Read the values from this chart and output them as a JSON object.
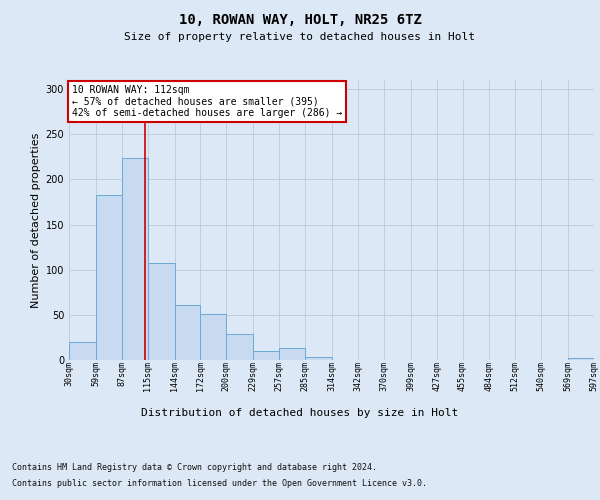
{
  "title1": "10, ROWAN WAY, HOLT, NR25 6TZ",
  "title2": "Size of property relative to detached houses in Holt",
  "xlabel": "Distribution of detached houses by size in Holt",
  "ylabel": "Number of detached properties",
  "bar_edges": [
    30,
    59,
    87,
    115,
    144,
    172,
    200,
    229,
    257,
    285,
    314,
    342,
    370,
    399,
    427,
    455,
    484,
    512,
    540,
    569,
    597
  ],
  "bar_heights": [
    20,
    183,
    224,
    107,
    61,
    51,
    29,
    10,
    13,
    3,
    0,
    0,
    0,
    0,
    0,
    0,
    0,
    0,
    0,
    2
  ],
  "bar_color": "#c8daf0",
  "bar_edge_color": "#6aaad4",
  "grid_color": "#c0cede",
  "background_color": "#dce8f5",
  "property_line_x": 112,
  "property_line_color": "#cc0000",
  "annotation_text": "10 ROWAN WAY: 112sqm\n← 57% of detached houses are smaller (395)\n42% of semi-detached houses are larger (286) →",
  "annotation_box_facecolor": "#ffffff",
  "annotation_box_edgecolor": "#cc0000",
  "footnote_line1": "Contains HM Land Registry data © Crown copyright and database right 2024.",
  "footnote_line2": "Contains public sector information licensed under the Open Government Licence v3.0.",
  "ylim": [
    0,
    310
  ],
  "yticks": [
    0,
    50,
    100,
    150,
    200,
    250,
    300
  ],
  "tick_labels": [
    "30sqm",
    "59sqm",
    "87sqm",
    "115sqm",
    "144sqm",
    "172sqm",
    "200sqm",
    "229sqm",
    "257sqm",
    "285sqm",
    "314sqm",
    "342sqm",
    "370sqm",
    "399sqm",
    "427sqm",
    "455sqm",
    "484sqm",
    "512sqm",
    "540sqm",
    "569sqm",
    "597sqm"
  ],
  "title1_fontsize": 10,
  "title2_fontsize": 8,
  "xlabel_fontsize": 8,
  "ylabel_fontsize": 8,
  "tick_fontsize": 6,
  "ytick_fontsize": 7,
  "annotation_fontsize": 7,
  "footnote_fontsize": 6
}
